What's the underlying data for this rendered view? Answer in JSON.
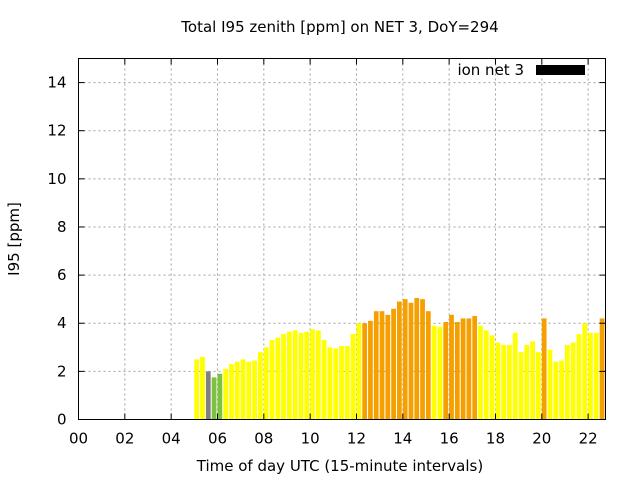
{
  "chart_data": {
    "type": "bar",
    "title": "Total I95 zenith [ppm] on NET 3, DoY=294",
    "xlabel": "Time of day UTC (15-minute intervals)",
    "ylabel": "I95 [ppm]",
    "xlim": [
      0,
      22.75
    ],
    "ylim": [
      0,
      15
    ],
    "xticks": [
      "00",
      "02",
      "04",
      "06",
      "08",
      "10",
      "12",
      "14",
      "16",
      "18",
      "20",
      "22"
    ],
    "yticks": [
      "0",
      "2",
      "4",
      "6",
      "8",
      "10",
      "12",
      "14"
    ],
    "grid": true,
    "legend": {
      "label": "ion net 3",
      "color": "#000000",
      "placement": "top-right"
    },
    "interval_hours": 0.25,
    "series": [
      {
        "values": [
          {
            "t": 5.0,
            "v": 2.5,
            "c": "#ffff00"
          },
          {
            "t": 5.25,
            "v": 2.6,
            "c": "#ffff00"
          },
          {
            "t": 5.5,
            "v": 2.0,
            "c": "#808080"
          },
          {
            "t": 5.75,
            "v": 1.75,
            "c": "#7ec242"
          },
          {
            "t": 6.0,
            "v": 1.9,
            "c": "#7ec242"
          },
          {
            "t": 6.25,
            "v": 2.1,
            "c": "#ffff00"
          },
          {
            "t": 6.5,
            "v": 2.3,
            "c": "#ffff00"
          },
          {
            "t": 6.75,
            "v": 2.4,
            "c": "#ffff00"
          },
          {
            "t": 7.0,
            "v": 2.5,
            "c": "#ffff00"
          },
          {
            "t": 7.25,
            "v": 2.4,
            "c": "#ffff00"
          },
          {
            "t": 7.5,
            "v": 2.45,
            "c": "#ffff00"
          },
          {
            "t": 7.75,
            "v": 2.8,
            "c": "#ffff00"
          },
          {
            "t": 8.0,
            "v": 3.0,
            "c": "#ffff00"
          },
          {
            "t": 8.25,
            "v": 3.3,
            "c": "#ffff00"
          },
          {
            "t": 8.5,
            "v": 3.4,
            "c": "#ffff00"
          },
          {
            "t": 8.75,
            "v": 3.55,
            "c": "#ffff00"
          },
          {
            "t": 9.0,
            "v": 3.65,
            "c": "#ffff00"
          },
          {
            "t": 9.25,
            "v": 3.7,
            "c": "#ffff00"
          },
          {
            "t": 9.5,
            "v": 3.6,
            "c": "#ffff00"
          },
          {
            "t": 9.75,
            "v": 3.65,
            "c": "#ffff00"
          },
          {
            "t": 10.0,
            "v": 3.75,
            "c": "#ffff00"
          },
          {
            "t": 10.25,
            "v": 3.7,
            "c": "#ffff00"
          },
          {
            "t": 10.5,
            "v": 3.3,
            "c": "#ffff00"
          },
          {
            "t": 10.75,
            "v": 3.0,
            "c": "#ffff00"
          },
          {
            "t": 11.0,
            "v": 2.95,
            "c": "#ffff00"
          },
          {
            "t": 11.25,
            "v": 3.05,
            "c": "#ffff00"
          },
          {
            "t": 11.5,
            "v": 3.05,
            "c": "#ffff00"
          },
          {
            "t": 11.75,
            "v": 3.55,
            "c": "#ffff00"
          },
          {
            "t": 12.0,
            "v": 4.0,
            "c": "#ffff00"
          },
          {
            "t": 12.25,
            "v": 4.0,
            "c": "#f5a000"
          },
          {
            "t": 12.5,
            "v": 4.1,
            "c": "#f5a000"
          },
          {
            "t": 12.75,
            "v": 4.5,
            "c": "#f5a000"
          },
          {
            "t": 13.0,
            "v": 4.5,
            "c": "#f5a000"
          },
          {
            "t": 13.25,
            "v": 4.35,
            "c": "#f5a000"
          },
          {
            "t": 13.5,
            "v": 4.6,
            "c": "#f5a000"
          },
          {
            "t": 13.75,
            "v": 4.9,
            "c": "#f5a000"
          },
          {
            "t": 14.0,
            "v": 5.0,
            "c": "#f5a000"
          },
          {
            "t": 14.25,
            "v": 4.85,
            "c": "#f5a000"
          },
          {
            "t": 14.5,
            "v": 5.05,
            "c": "#f5a000"
          },
          {
            "t": 14.75,
            "v": 5.0,
            "c": "#f5a000"
          },
          {
            "t": 15.0,
            "v": 4.5,
            "c": "#f5a000"
          },
          {
            "t": 15.25,
            "v": 3.9,
            "c": "#ffff00"
          },
          {
            "t": 15.5,
            "v": 3.85,
            "c": "#ffff00"
          },
          {
            "t": 15.75,
            "v": 4.05,
            "c": "#f5a000"
          },
          {
            "t": 16.0,
            "v": 4.35,
            "c": "#f5a000"
          },
          {
            "t": 16.25,
            "v": 4.05,
            "c": "#f5a000"
          },
          {
            "t": 16.5,
            "v": 4.2,
            "c": "#f5a000"
          },
          {
            "t": 16.75,
            "v": 4.2,
            "c": "#f5a000"
          },
          {
            "t": 17.0,
            "v": 4.3,
            "c": "#f5a000"
          },
          {
            "t": 17.25,
            "v": 3.9,
            "c": "#ffff00"
          },
          {
            "t": 17.5,
            "v": 3.7,
            "c": "#ffff00"
          },
          {
            "t": 17.75,
            "v": 3.5,
            "c": "#ffff00"
          },
          {
            "t": 18.0,
            "v": 3.2,
            "c": "#ffff00"
          },
          {
            "t": 18.25,
            "v": 3.1,
            "c": "#ffff00"
          },
          {
            "t": 18.5,
            "v": 3.1,
            "c": "#ffff00"
          },
          {
            "t": 18.75,
            "v": 3.6,
            "c": "#ffff00"
          },
          {
            "t": 19.0,
            "v": 2.8,
            "c": "#ffff00"
          },
          {
            "t": 19.25,
            "v": 3.1,
            "c": "#ffff00"
          },
          {
            "t": 19.5,
            "v": 3.25,
            "c": "#ffff00"
          },
          {
            "t": 19.75,
            "v": 2.8,
            "c": "#ffff00"
          },
          {
            "t": 20.0,
            "v": 4.2,
            "c": "#f5a000"
          },
          {
            "t": 20.25,
            "v": 2.9,
            "c": "#ffff00"
          },
          {
            "t": 20.5,
            "v": 2.4,
            "c": "#ffff00"
          },
          {
            "t": 20.75,
            "v": 2.45,
            "c": "#ffff00"
          },
          {
            "t": 21.0,
            "v": 3.1,
            "c": "#ffff00"
          },
          {
            "t": 21.25,
            "v": 3.2,
            "c": "#ffff00"
          },
          {
            "t": 21.5,
            "v": 3.55,
            "c": "#ffff00"
          },
          {
            "t": 21.75,
            "v": 4.0,
            "c": "#ffff00"
          },
          {
            "t": 22.0,
            "v": 3.6,
            "c": "#ffff00"
          },
          {
            "t": 22.25,
            "v": 3.6,
            "c": "#ffff00"
          },
          {
            "t": 22.5,
            "v": 4.2,
            "c": "#f5a000"
          },
          {
            "t": 22.75,
            "v": 4.0,
            "c": "#f5a000"
          }
        ]
      }
    ]
  }
}
